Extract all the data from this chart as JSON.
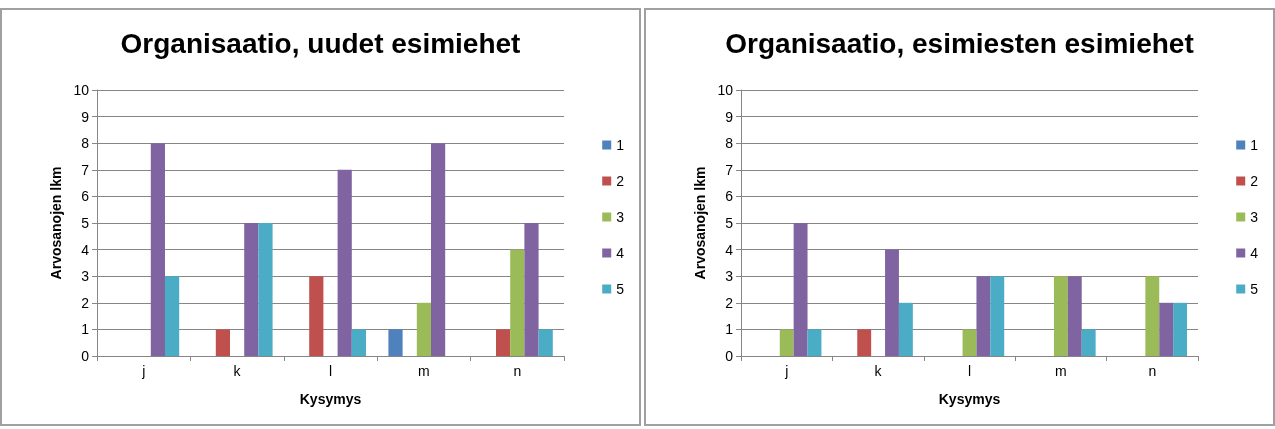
{
  "chart_data": [
    {
      "type": "bar",
      "title": "Organisaatio, uudet esimiehet",
      "xlabel": "Kysymys",
      "ylabel": "Arvosanojen lkm",
      "categories": [
        "j",
        "k",
        "l",
        "m",
        "n"
      ],
      "ylim": [
        0,
        10
      ],
      "yticks": [
        0,
        1,
        2,
        3,
        4,
        5,
        6,
        7,
        8,
        9,
        10
      ],
      "grid": "y",
      "legend": "right",
      "series": [
        {
          "name": "1",
          "color": "#4f81bd",
          "values": [
            0,
            0,
            0,
            1,
            0
          ]
        },
        {
          "name": "2",
          "color": "#c0504d",
          "values": [
            0,
            1,
            3,
            0,
            1
          ]
        },
        {
          "name": "3",
          "color": "#9bbb59",
          "values": [
            0,
            0,
            0,
            2,
            4
          ]
        },
        {
          "name": "4",
          "color": "#8064a2",
          "values": [
            8,
            5,
            7,
            8,
            5
          ]
        },
        {
          "name": "5",
          "color": "#4bacc6",
          "values": [
            3,
            5,
            1,
            0,
            1
          ]
        }
      ]
    },
    {
      "type": "bar",
      "title": "Organisaatio, esimiesten esimiehet",
      "xlabel": "Kysymys",
      "ylabel": "Arvosanojen lkm",
      "categories": [
        "j",
        "k",
        "l",
        "m",
        "n"
      ],
      "ylim": [
        0,
        10
      ],
      "yticks": [
        0,
        1,
        2,
        3,
        4,
        5,
        6,
        7,
        8,
        9,
        10
      ],
      "grid": "y",
      "legend": "right",
      "series": [
        {
          "name": "1",
          "color": "#4f81bd",
          "values": [
            0,
            0,
            0,
            0,
            0
          ]
        },
        {
          "name": "2",
          "color": "#c0504d",
          "values": [
            0,
            1,
            0,
            0,
            0
          ]
        },
        {
          "name": "3",
          "color": "#9bbb59",
          "values": [
            1,
            0,
            1,
            3,
            3
          ]
        },
        {
          "name": "4",
          "color": "#8064a2",
          "values": [
            5,
            4,
            3,
            3,
            2
          ]
        },
        {
          "name": "5",
          "color": "#4bacc6",
          "values": [
            1,
            2,
            3,
            1,
            2
          ]
        }
      ]
    }
  ]
}
